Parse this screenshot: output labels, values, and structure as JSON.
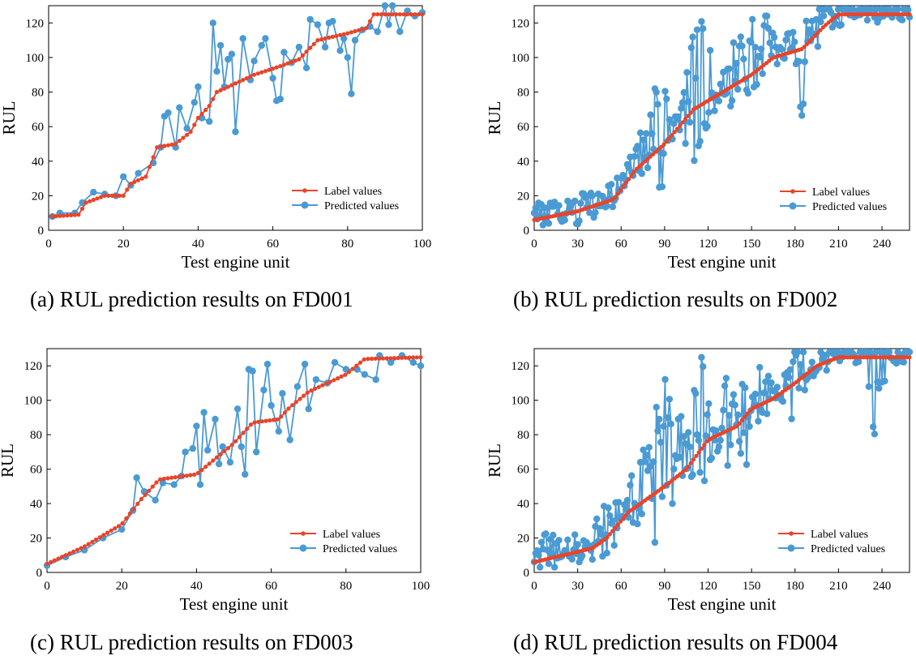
{
  "palette": {
    "label": "#e8442a",
    "predicted": "#4a9ad4"
  },
  "chart_data": [
    {
      "type": "line",
      "caption": "(a)  RUL prediction results on FD001",
      "xlabel": "Test engine unit",
      "ylabel": "RUL",
      "xlim": [
        0,
        100
      ],
      "ylim": [
        0,
        130
      ],
      "xticks": [
        0,
        20,
        40,
        60,
        80,
        100
      ],
      "yticks": [
        0,
        20,
        40,
        60,
        80,
        100,
        120
      ],
      "legend": "bottom-right",
      "series": [
        {
          "name": "Label values",
          "color": "#e8442a",
          "anchors": [
            [
              1,
              8
            ],
            [
              8,
              9
            ],
            [
              10,
              16
            ],
            [
              15,
              20
            ],
            [
              20,
              20
            ],
            [
              22,
              27
            ],
            [
              26,
              31
            ],
            [
              29,
              48
            ],
            [
              34,
              50
            ],
            [
              38,
              57
            ],
            [
              40,
              65
            ],
            [
              43,
              72
            ],
            [
              45,
              80
            ],
            [
              55,
              90
            ],
            [
              62,
              95
            ],
            [
              67,
              99
            ],
            [
              72,
              110
            ],
            [
              80,
              114
            ],
            [
              85,
              117
            ],
            [
              87,
              125
            ],
            [
              100,
              125
            ]
          ]
        },
        {
          "name": "Predicted values",
          "color": "#4a9ad4",
          "anchors": [
            [
              1,
              8
            ],
            [
              3,
              10
            ],
            [
              7,
              10
            ],
            [
              9,
              16
            ],
            [
              12,
              22
            ],
            [
              15,
              21
            ],
            [
              18,
              20
            ],
            [
              20,
              31
            ],
            [
              22,
              26
            ],
            [
              24,
              33
            ],
            [
              28,
              39
            ],
            [
              30,
              48
            ],
            [
              31,
              66
            ],
            [
              32,
              68
            ],
            [
              34,
              48
            ],
            [
              35,
              71
            ],
            [
              37,
              59
            ],
            [
              39,
              74
            ],
            [
              40,
              83
            ],
            [
              41,
              65
            ],
            [
              43,
              63
            ],
            [
              44,
              120
            ],
            [
              45,
              92
            ],
            [
              46,
              107
            ],
            [
              47,
              83
            ],
            [
              48,
              99
            ],
            [
              49,
              102
            ],
            [
              50,
              57
            ],
            [
              52,
              111
            ],
            [
              54,
              87
            ],
            [
              55,
              98
            ],
            [
              57,
              107
            ],
            [
              58,
              111
            ],
            [
              60,
              88
            ],
            [
              61,
              75
            ],
            [
              62,
              76
            ],
            [
              63,
              103
            ],
            [
              65,
              97
            ],
            [
              67,
              106
            ],
            [
              69,
              94
            ],
            [
              70,
              122
            ],
            [
              72,
              119
            ],
            [
              74,
              106
            ],
            [
              75,
              120
            ],
            [
              76,
              121
            ],
            [
              78,
              104
            ],
            [
              79,
              111
            ],
            [
              80,
              100
            ],
            [
              81,
              79
            ],
            [
              82,
              110
            ],
            [
              84,
              116
            ],
            [
              86,
              118
            ],
            [
              88,
              115
            ],
            [
              90,
              130
            ],
            [
              91,
              119
            ],
            [
              92,
              130
            ],
            [
              94,
              115
            ],
            [
              96,
              127
            ],
            [
              98,
              124
            ],
            [
              100,
              126
            ]
          ]
        }
      ]
    },
    {
      "type": "line",
      "caption": "(b)  RUL prediction results on FD002",
      "xlabel": "Test engine unit",
      "ylabel": "RUL",
      "xlim": [
        0,
        259
      ],
      "ylim": [
        0,
        130
      ],
      "xticks": [
        0,
        30,
        60,
        90,
        120,
        150,
        180,
        210,
        240
      ],
      "yticks": [
        0,
        20,
        40,
        60,
        80,
        100,
        120
      ],
      "legend": "bottom-right",
      "series": [
        {
          "name": "Label values",
          "color": "#e8442a",
          "anchors": [
            [
              0,
              6
            ],
            [
              30,
              11
            ],
            [
              55,
              18
            ],
            [
              70,
              35
            ],
            [
              90,
              50
            ],
            [
              110,
              70
            ],
            [
              130,
              80
            ],
            [
              150,
              90
            ],
            [
              165,
              100
            ],
            [
              185,
              105
            ],
            [
              200,
              118
            ],
            [
              210,
              125
            ],
            [
              259,
              125
            ]
          ]
        },
        {
          "name": "Predicted values",
          "color": "#4a9ad4",
          "anchors": [
            [
              0,
              10
            ],
            [
              10,
              14
            ],
            [
              20,
              7
            ],
            [
              30,
              20
            ],
            [
              45,
              20
            ],
            [
              55,
              10
            ],
            [
              62,
              30
            ],
            [
              75,
              55
            ],
            [
              80,
              66
            ],
            [
              90,
              93
            ],
            [
              95,
              50
            ],
            [
              100,
              60
            ],
            [
              110,
              118
            ],
            [
              120,
              110
            ],
            [
              130,
              70
            ],
            [
              140,
              122
            ],
            [
              150,
              60
            ],
            [
              160,
              128
            ],
            [
              170,
              95
            ],
            [
              180,
              90
            ],
            [
              185,
              65
            ],
            [
              190,
              122
            ],
            [
              200,
              91
            ],
            [
              210,
              118
            ],
            [
              230,
              128
            ],
            [
              259,
              125
            ]
          ]
        }
      ]
    },
    {
      "type": "line",
      "caption": "(c)  RUL prediction results on FD003",
      "xlabel": "Test engine unit",
      "ylabel": "RUL",
      "xlim": [
        0,
        100
      ],
      "ylim": [
        0,
        130
      ],
      "xticks": [
        0,
        20,
        40,
        60,
        80,
        100
      ],
      "yticks": [
        0,
        20,
        40,
        60,
        80,
        100,
        120
      ],
      "legend": "bottom-right",
      "series": [
        {
          "name": "Label values",
          "color": "#e8442a",
          "anchors": [
            [
              0,
              5
            ],
            [
              10,
              15
            ],
            [
              20,
              28
            ],
            [
              25,
              42
            ],
            [
              30,
              54
            ],
            [
              40,
              57
            ],
            [
              50,
              75
            ],
            [
              55,
              87
            ],
            [
              62,
              89
            ],
            [
              65,
              96
            ],
            [
              70,
              105
            ],
            [
              75,
              110
            ],
            [
              80,
              115
            ],
            [
              85,
              124
            ],
            [
              100,
              125
            ]
          ]
        },
        {
          "name": "Predicted values",
          "color": "#4a9ad4",
          "anchors": [
            [
              0,
              4
            ],
            [
              5,
              9
            ],
            [
              10,
              13
            ],
            [
              15,
              20
            ],
            [
              20,
              25
            ],
            [
              23,
              36
            ],
            [
              24,
              55
            ],
            [
              26,
              47
            ],
            [
              29,
              42
            ],
            [
              31,
              52
            ],
            [
              34,
              51
            ],
            [
              36,
              56
            ],
            [
              37,
              70
            ],
            [
              39,
              72
            ],
            [
              40,
              85
            ],
            [
              41,
              51
            ],
            [
              42,
              93
            ],
            [
              43,
              71
            ],
            [
              45,
              89
            ],
            [
              46,
              63
            ],
            [
              47,
              73
            ],
            [
              49,
              64
            ],
            [
              51,
              95
            ],
            [
              52,
              73
            ],
            [
              53,
              57
            ],
            [
              54,
              118
            ],
            [
              55,
              117
            ],
            [
              56,
              70
            ],
            [
              58,
              106
            ],
            [
              59,
              121
            ],
            [
              60,
              97
            ],
            [
              62,
              82
            ],
            [
              63,
              104
            ],
            [
              65,
              77
            ],
            [
              67,
              108
            ],
            [
              69,
              121
            ],
            [
              70,
              95
            ],
            [
              72,
              112
            ],
            [
              75,
              110
            ],
            [
              77,
              122
            ],
            [
              80,
              118
            ],
            [
              83,
              118
            ],
            [
              85,
              115
            ],
            [
              88,
              112
            ],
            [
              89,
              126
            ],
            [
              92,
              122
            ],
            [
              95,
              126
            ],
            [
              98,
              122
            ],
            [
              100,
              120
            ]
          ]
        }
      ]
    },
    {
      "type": "line",
      "caption": "(d)  RUL prediction results on FD004",
      "xlabel": "Test engine unit",
      "ylabel": "RUL",
      "xlim": [
        0,
        259
      ],
      "ylim": [
        0,
        130
      ],
      "xticks": [
        0,
        30,
        60,
        90,
        120,
        150,
        180,
        210,
        240
      ],
      "yticks": [
        0,
        20,
        40,
        60,
        80,
        100,
        120
      ],
      "legend": "bottom-right",
      "series": [
        {
          "name": "Label values",
          "color": "#e8442a",
          "anchors": [
            [
              0,
              6
            ],
            [
              40,
              14
            ],
            [
              50,
              20
            ],
            [
              65,
              35
            ],
            [
              90,
              50
            ],
            [
              105,
              60
            ],
            [
              120,
              77
            ],
            [
              140,
              85
            ],
            [
              150,
              95
            ],
            [
              165,
              101
            ],
            [
              180,
              110
            ],
            [
              195,
              120
            ],
            [
              210,
              125
            ],
            [
              259,
              125
            ]
          ]
        },
        {
          "name": "Predicted values",
          "color": "#4a9ad4",
          "anchors": [
            [
              0,
              12
            ],
            [
              10,
              18
            ],
            [
              20,
              10
            ],
            [
              30,
              5
            ],
            [
              40,
              20
            ],
            [
              50,
              55
            ],
            [
              60,
              30
            ],
            [
              70,
              58
            ],
            [
              80,
              83
            ],
            [
              90,
              113
            ],
            [
              95,
              100
            ],
            [
              105,
              75
            ],
            [
              115,
              120
            ],
            [
              125,
              85
            ],
            [
              135,
              122
            ],
            [
              145,
              52
            ],
            [
              155,
              120
            ],
            [
              165,
              105
            ],
            [
              175,
              115
            ],
            [
              180,
              67
            ],
            [
              190,
              125
            ],
            [
              210,
              127
            ],
            [
              225,
              122
            ],
            [
              235,
              80
            ],
            [
              245,
              125
            ],
            [
              259,
              121
            ]
          ]
        }
      ]
    }
  ]
}
